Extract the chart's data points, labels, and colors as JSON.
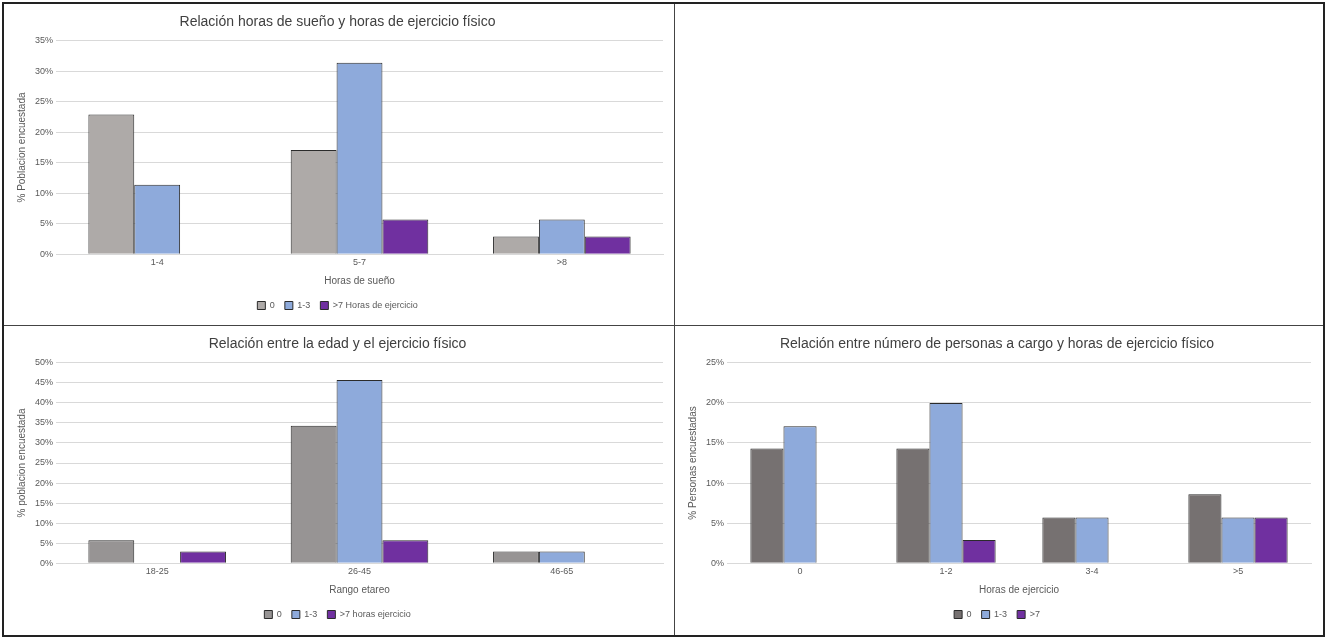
{
  "chart_data": [
    {
      "type": "bar",
      "title": "Relación horas de sueño y horas de ejercicio físico",
      "xlabel": "Horas de sueño",
      "ylabel": "% Poblacion encuestada",
      "categories": [
        "1-4",
        "5-7",
        ">8"
      ],
      "series": [
        {
          "name": "0",
          "color": "#aeaaa8",
          "values": [
            22.9,
            17.1,
            2.9
          ]
        },
        {
          "name": "1-3",
          "color": "#8eaadb",
          "values": [
            11.4,
            31.4,
            5.7
          ]
        },
        {
          "name": ">7 Horas de ejercicio",
          "color": "#7030a0",
          "values": [
            0,
            5.7,
            2.9
          ]
        }
      ],
      "ylim": [
        0,
        35
      ],
      "yticks": [
        {
          "value": 0,
          "label": "0%"
        },
        {
          "value": 5,
          "label": "5%"
        },
        {
          "value": 10,
          "label": "10%"
        },
        {
          "value": 15,
          "label": "15%"
        },
        {
          "value": 20,
          "label": "20%"
        },
        {
          "value": 25,
          "label": "25%"
        },
        {
          "value": 30,
          "label": "30%"
        },
        {
          "value": 35,
          "label": "35%"
        }
      ],
      "grid": "y",
      "legend": "bottom"
    },
    {
      "type": "bar",
      "title": "Relación entre la edad y el ejercicio físico",
      "xlabel": "Rango etareo",
      "ylabel": "% poblacion encuestada",
      "categories": [
        "18-25",
        "26-45",
        "46-65"
      ],
      "series": [
        {
          "name": "0",
          "color": "#979494",
          "values": [
            5.7,
            34.3,
            2.9
          ]
        },
        {
          "name": "1-3",
          "color": "#8eaadb",
          "values": [
            0,
            45.7,
            2.9
          ]
        },
        {
          "name": ">7 horas ejercicio",
          "color": "#7030a0",
          "values": [
            2.9,
            5.7,
            0
          ]
        }
      ],
      "ylim": [
        0,
        50
      ],
      "yticks": [
        {
          "value": 0,
          "label": "0%"
        },
        {
          "value": 5,
          "label": "5%"
        },
        {
          "value": 10,
          "label": "10%"
        },
        {
          "value": 15,
          "label": "15%"
        },
        {
          "value": 20,
          "label": "20%"
        },
        {
          "value": 25,
          "label": "25%"
        },
        {
          "value": 30,
          "label": "30%"
        },
        {
          "value": 35,
          "label": "35%"
        },
        {
          "value": 40,
          "label": "40%"
        },
        {
          "value": 45,
          "label": "45%"
        },
        {
          "value": 50,
          "label": "50%"
        }
      ],
      "grid": "y",
      "legend": "bottom"
    },
    {
      "type": "bar",
      "title": "Relación entre número de personas a cargo y horas de ejercicio físico",
      "xlabel": "Horas de ejercicio",
      "ylabel": "% Personas encuestadas",
      "categories": [
        "0",
        "1-2",
        "3-4",
        ">5"
      ],
      "series": [
        {
          "name": "0",
          "color": "#767171",
          "values": [
            14.3,
            14.3,
            5.7,
            8.6
          ]
        },
        {
          "name": "1-3",
          "color": "#8eaadb",
          "values": [
            17.1,
            20,
            5.7,
            5.7
          ]
        },
        {
          "name": ">7",
          "color": "#7030a0",
          "values": [
            0,
            2.9,
            0,
            5.7
          ]
        }
      ],
      "ylim": [
        0,
        25
      ],
      "yticks": [
        {
          "value": 0,
          "label": "0%"
        },
        {
          "value": 5,
          "label": "5%"
        },
        {
          "value": 10,
          "label": "10%"
        },
        {
          "value": 15,
          "label": "15%"
        },
        {
          "value": 20,
          "label": "20%"
        },
        {
          "value": 25,
          "label": "25%"
        }
      ],
      "grid": "y",
      "legend": "bottom"
    }
  ]
}
